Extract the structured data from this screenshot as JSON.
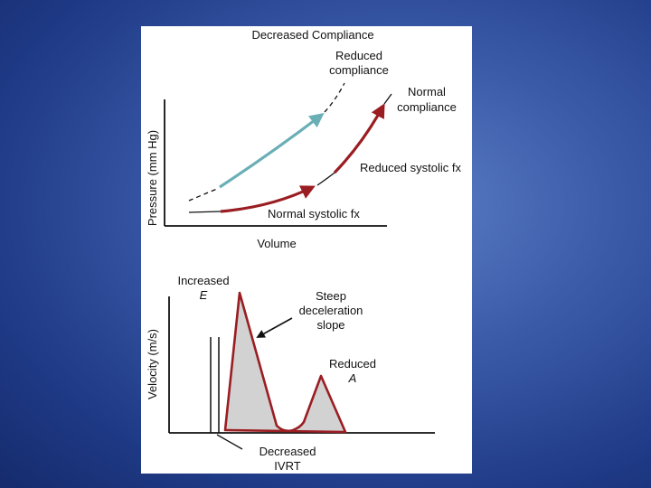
{
  "top_diagram": {
    "title": "Decreased Compliance",
    "y_axis_label": "Pressure (mm Hg)",
    "x_axis_label": "Volume",
    "labels": {
      "reduced_compliance_line1": "Reduced",
      "reduced_compliance_line2": "compliance",
      "normal_compliance_line1": "Normal",
      "normal_compliance_line2": "compliance",
      "reduced_systolic": "Reduced systolic fx",
      "normal_systolic": "Normal systolic fx"
    },
    "colors": {
      "reduced_compliance_arrow": "#6aafb6",
      "normal_compliance_arrow": "#9a1d22"
    }
  },
  "bottom_diagram": {
    "y_axis_label": "Velocity (m/s)",
    "labels": {
      "increased_line1": "Increased",
      "increased_e": "E",
      "steep_line1": "Steep",
      "steep_line2": "deceleration",
      "steep_line3": "slope",
      "reduced_line1": "Reduced",
      "reduced_a": "A",
      "decreased_line1": "Decreased",
      "decreased_line2": "IVRT"
    },
    "colors": {
      "waveform_outline": "#9a1d22",
      "waveform_fill": "#d2d2d2"
    }
  }
}
